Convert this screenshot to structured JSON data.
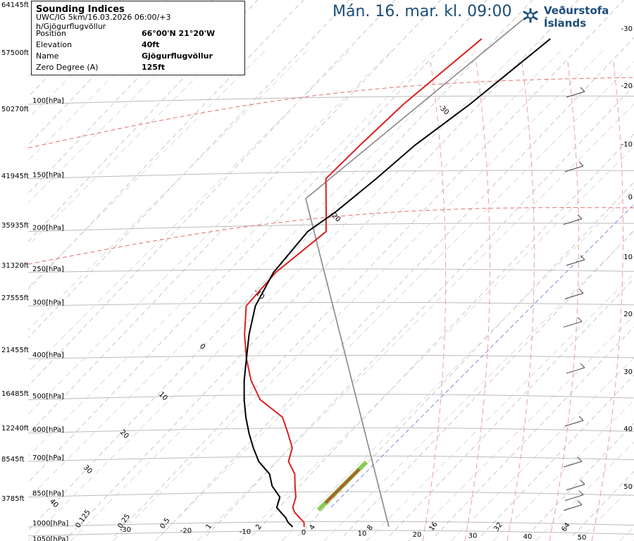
{
  "header": {
    "headline": "Mán. 16. mar. kl. 09:00",
    "brand_name": "Veðurstofa Íslands",
    "brand_icon": "snowflake-logo-icon"
  },
  "info_box": {
    "title": "Sounding Indices",
    "subtitle": "UWC/IG 5km/16.03.2026 06:00/+3 h/Gjögurflugvöllur",
    "rows": [
      {
        "key": "Position",
        "value": "66°00'N 21°20'W"
      },
      {
        "key": "Elevation",
        "value": "40ft"
      },
      {
        "key": "Name",
        "value": "Gjögurflugvöllur"
      },
      {
        "key": "Zero Degree (A)",
        "value": "125ft"
      }
    ]
  },
  "colors": {
    "temperature": "#dd1f1f",
    "dewpoint": "#000000",
    "isotherm": "#bbbbbb",
    "dry_adiabat": "#cccccc",
    "moist_adiabat": "#e8a0a0",
    "isobar": "#bbbbbb",
    "headline": "#1d4e78"
  },
  "chart_data": {
    "type": "line",
    "title": "",
    "y_axis_left_pressure_labels": [
      "100[hPa]",
      "150[hPa]",
      "200[hPa]",
      "250[hPa]",
      "300[hPa]",
      "400[hPa]",
      "500[hPa]",
      "600[hPa]",
      "700[hPa]",
      "850[hPa]",
      "1000[hPa]",
      "1050[hPa]"
    ],
    "y_axis_left_altitude_labels": [
      "64145ft",
      "57500ft",
      "50270ft",
      "41945ft",
      "35935ft",
      "31320ft",
      "27555ft",
      "21455ft",
      "16485ft",
      "12240ft",
      "8545ft",
      "3785ft"
    ],
    "y_axis_right_labels": [
      "-30",
      "-20",
      "-10",
      "0",
      "10",
      "20",
      "30",
      "40",
      "50"
    ],
    "x_axis_temperature_labels": [
      "-30",
      "-20",
      "-10",
      "0",
      "10",
      "20",
      "30",
      "40",
      "50"
    ],
    "mixing_ratio_labels": [
      "0.125",
      "0.25",
      "0.5",
      "1",
      "2",
      "4",
      "8",
      "16",
      "32",
      "64"
    ],
    "in_plot_isotherm_labels": [
      "40",
      "30",
      "20",
      "10",
      "0",
      "-10",
      "-20",
      "-30",
      "20",
      "30"
    ],
    "series": [
      {
        "name": "",
        "role": "temperature",
        "pressure_hpa": [
          1000,
          975,
          950,
          925,
          900,
          850,
          800,
          750,
          700,
          650,
          600,
          550,
          500,
          450,
          400,
          350,
          300,
          250,
          200,
          180,
          150,
          125,
          100,
          70
        ],
        "temperature_c": [
          -0.5,
          -1.5,
          -3.5,
          -5.5,
          -7.0,
          -8.5,
          -11.0,
          -13.5,
          -17.5,
          -19.5,
          -23.5,
          -28.0,
          -36.5,
          -42.5,
          -48.0,
          -53.5,
          -59.0,
          -59.5,
          -57.0,
          -61.0,
          -68.0,
          -67.5,
          -66.5,
          -63.0
        ]
      },
      {
        "name": "",
        "role": "dewpoint",
        "pressure_hpa": [
          1000,
          975,
          950,
          925,
          900,
          850,
          800,
          750,
          700,
          650,
          600,
          550,
          500,
          450,
          400,
          350,
          300,
          250,
          200,
          180,
          150,
          125,
          100,
          70
        ],
        "dewpoint_c": [
          -3.0,
          -5.0,
          -6.5,
          -8.5,
          -10.5,
          -12.0,
          -16.0,
          -19.0,
          -24.0,
          -28.0,
          -32.0,
          -36.0,
          -40.0,
          -44.0,
          -48.0,
          -52.5,
          -57.0,
          -60.0,
          -61.0,
          -59.0,
          -57.0,
          -55.5,
          -52.0,
          -48.0
        ]
      }
    ],
    "wind_barbs_pressure_hpa": [
      950,
      900,
      850,
      750,
      600,
      450,
      350,
      300,
      250,
      200,
      150,
      100
    ],
    "grid": true
  }
}
